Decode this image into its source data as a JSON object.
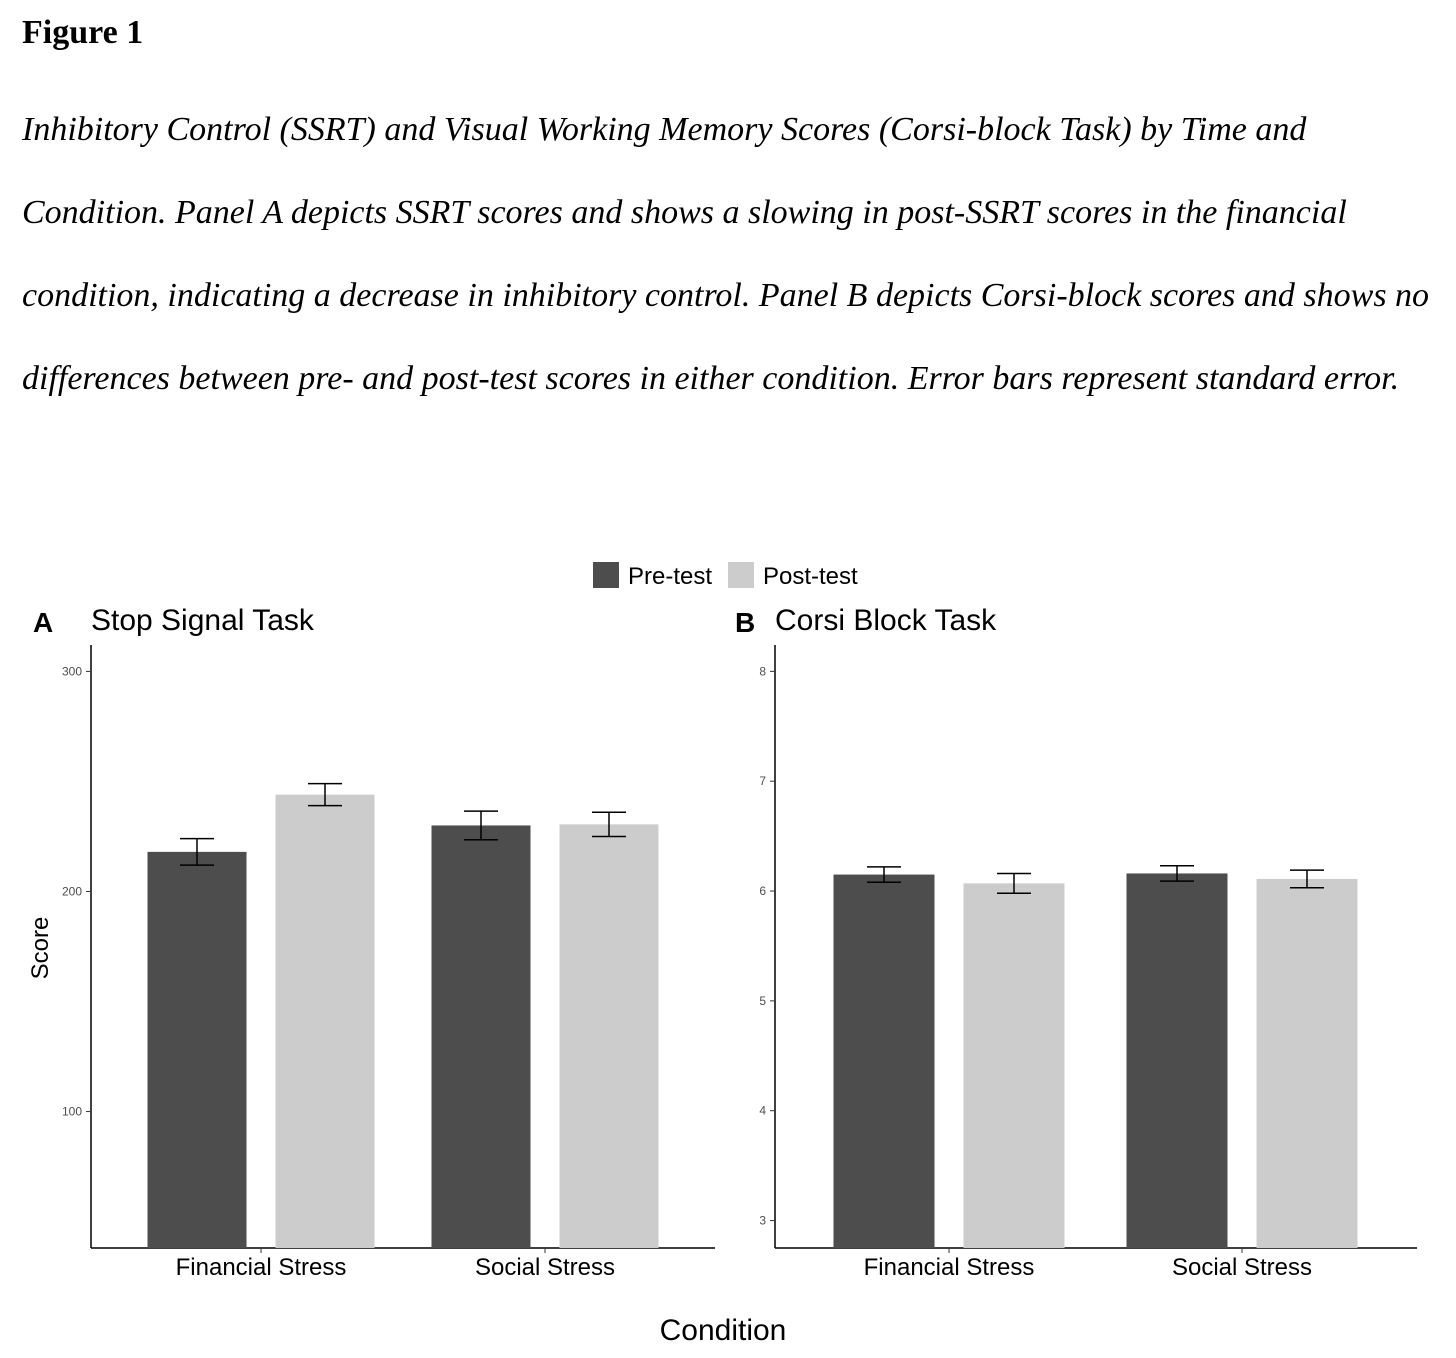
{
  "figure_label": "Figure 1",
  "caption": "Inhibitory Control (SSRT) and Visual Working Memory Scores (Corsi-block Task) by Time and Condition. Panel A depicts SSRT scores and shows a slowing in post-SSRT scores in the financial condition, indicating a decrease in inhibitory control. Panel B depicts Corsi-block scores and shows no differences between pre- and post-test scores in either condition. Error bars represent standard error.",
  "legend": {
    "items": [
      {
        "label": "Pre-test",
        "color": "#4d4d4d"
      },
      {
        "label": "Post-test",
        "color": "#cccccc"
      }
    ]
  },
  "shared_xlabel": "Condition",
  "chart_data": [
    {
      "type": "bar",
      "panel": "A",
      "title": "Stop Signal Task",
      "ylabel": "Score",
      "xlabel": "",
      "ylim": [
        38,
        312
      ],
      "yticks": [
        100,
        200,
        300
      ],
      "categories": [
        "Financial Stress",
        "Social Stress"
      ],
      "series": [
        {
          "name": "Pre-test",
          "color": "#4d4d4d",
          "values": [
            218,
            230
          ],
          "errors": [
            6,
            6.5
          ]
        },
        {
          "name": "Post-test",
          "color": "#cccccc",
          "values": [
            244,
            230.5
          ],
          "errors": [
            5,
            5.5
          ]
        }
      ]
    },
    {
      "type": "bar",
      "panel": "B",
      "title": "Corsi Block Task",
      "ylabel": "",
      "xlabel": "",
      "ylim": [
        2.75,
        8.24
      ],
      "yticks": [
        3,
        4,
        5,
        6,
        7,
        8
      ],
      "categories": [
        "Financial Stress",
        "Social Stress"
      ],
      "series": [
        {
          "name": "Pre-test",
          "color": "#4d4d4d",
          "values": [
            6.15,
            6.16
          ],
          "errors": [
            0.07,
            0.07
          ]
        },
        {
          "name": "Post-test",
          "color": "#cccccc",
          "values": [
            6.07,
            6.11
          ],
          "errors": [
            0.09,
            0.08
          ]
        }
      ]
    }
  ]
}
